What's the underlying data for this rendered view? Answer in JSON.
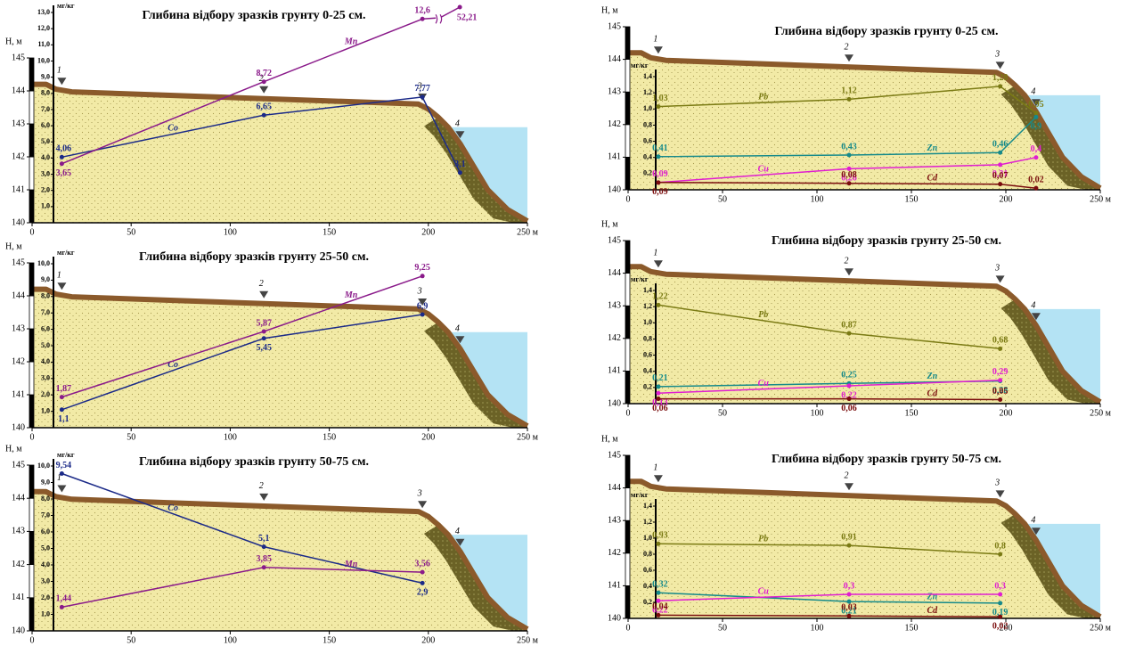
{
  "chart_data": [
    {
      "type": "line",
      "title": "Глибина відбору зразків грунту 0-25 см.",
      "ylabel": "Н, м",
      "y2label": "мг/кг",
      "xlim": [
        0,
        250
      ],
      "xticks": [
        0,
        50,
        100,
        150,
        200,
        {
          "value": 250,
          "label": "250 м"
        }
      ],
      "ylim": [
        140,
        145
      ],
      "yticks": [
        140,
        141,
        142,
        143,
        144,
        145
      ],
      "y2lim": [
        0,
        13
      ],
      "y2ticks": [
        {
          "value": 1,
          "label": "1,0"
        },
        {
          "value": 2,
          "label": "2,0"
        },
        {
          "value": 3,
          "label": "3,0"
        },
        {
          "value": 4,
          "label": "4,0"
        },
        {
          "value": 5,
          "label": "5,0"
        },
        {
          "value": 6,
          "label": "6,0"
        },
        {
          "value": 7,
          "label": "7,0"
        },
        {
          "value": 8,
          "label": "8,0"
        },
        {
          "value": 9,
          "label": "9,0"
        },
        {
          "value": 10,
          "label": "10,0"
        },
        {
          "value": 11,
          "label": "11,0"
        },
        {
          "value": 12,
          "label": "12,0"
        },
        {
          "value": 13,
          "label": "13,0"
        }
      ],
      "stations": {
        "labels": [
          "1",
          "2",
          "3",
          "4"
        ],
        "x": [
          15,
          117,
          197,
          216
        ]
      },
      "terrain": {
        "x": [
          0,
          7,
          12,
          20,
          195,
          200,
          205,
          210,
          216,
          222,
          230,
          240,
          250
        ],
        "h": [
          144.2,
          144.2,
          144.05,
          143.97,
          143.6,
          143.45,
          143.2,
          142.9,
          142.4,
          141.8,
          141.0,
          140.4,
          140.05
        ]
      },
      "water_level": 142.9,
      "series": [
        {
          "name": "Co",
          "color": "#1b2a88",
          "axis": "y2",
          "x": [
            15,
            117,
            197,
            216
          ],
          "values": [
            4.06,
            6.65,
            7.77,
            3.1
          ],
          "value_labels": [
            "4,06",
            "6,65",
            "7,77",
            "3,1"
          ]
        },
        {
          "name": "Mn",
          "color": "#8a1a8a",
          "axis": "y2",
          "x": [
            15,
            117,
            197
          ],
          "values": [
            3.65,
            8.72,
            12.6
          ],
          "value_labels": [
            "3,65",
            "8,72",
            "12,6"
          ]
        }
      ],
      "annotations": [
        {
          "text": "52,21"
        }
      ]
    },
    {
      "type": "line",
      "title": "Глибина відбору зразків грунту 25-50 см.",
      "ylabel": "Н, м",
      "y2label": "мг/кг",
      "xlim": [
        0,
        250
      ],
      "xticks": [
        0,
        50,
        100,
        150,
        200,
        {
          "value": 250,
          "label": "250 м"
        }
      ],
      "ylim": [
        140,
        145
      ],
      "yticks": [
        140,
        141,
        142,
        143,
        144,
        145
      ],
      "y2lim": [
        0,
        10
      ],
      "y2ticks": [
        {
          "value": 1,
          "label": "1,0"
        },
        {
          "value": 2,
          "label": "2,0"
        },
        {
          "value": 3,
          "label": "3,0"
        },
        {
          "value": 4,
          "label": "4,0"
        },
        {
          "value": 5,
          "label": "5,0"
        },
        {
          "value": 6,
          "label": "6,0"
        },
        {
          "value": 7,
          "label": "7,0"
        },
        {
          "value": 8,
          "label": "8,0"
        },
        {
          "value": 9,
          "label": "9,0"
        },
        {
          "value": 10,
          "label": "10,0"
        }
      ],
      "stations": {
        "labels": [
          "1",
          "2",
          "3",
          "4"
        ],
        "x": [
          15,
          117,
          197,
          216
        ]
      },
      "terrain": {
        "x": [
          0,
          7,
          12,
          20,
          195,
          200,
          205,
          210,
          216,
          222,
          230,
          240,
          250
        ],
        "h": [
          144.2,
          144.2,
          144.05,
          143.97,
          143.6,
          143.45,
          143.2,
          142.9,
          142.4,
          141.8,
          141.0,
          140.4,
          140.05
        ]
      },
      "water_level": 142.9,
      "series": [
        {
          "name": "Co",
          "color": "#1b2a88",
          "axis": "y2",
          "x": [
            15,
            117,
            197
          ],
          "values": [
            1.1,
            5.45,
            6.9
          ],
          "value_labels": [
            "1,1",
            "5,45",
            "6,9"
          ]
        },
        {
          "name": "Mn",
          "color": "#8a1a8a",
          "axis": "y2",
          "x": [
            15,
            117,
            197
          ],
          "values": [
            1.87,
            5.87,
            9.25
          ],
          "value_labels": [
            "1,87",
            "5,87",
            "9,25"
          ]
        }
      ]
    },
    {
      "type": "line",
      "title": "Глибина відбору зразків грунту 50-75 см.",
      "ylabel": "Н, м",
      "y2label": "мг/кг",
      "xlim": [
        0,
        250
      ],
      "xticks": [
        0,
        50,
        100,
        150,
        200,
        {
          "value": 250,
          "label": "250 м"
        }
      ],
      "ylim": [
        140,
        145
      ],
      "yticks": [
        140,
        141,
        142,
        143,
        144,
        145
      ],
      "y2lim": [
        0,
        10
      ],
      "y2ticks": [
        {
          "value": 1,
          "label": "1,0"
        },
        {
          "value": 2,
          "label": "2,0"
        },
        {
          "value": 3,
          "label": "3,0"
        },
        {
          "value": 4,
          "label": "4,0"
        },
        {
          "value": 5,
          "label": "5,0"
        },
        {
          "value": 6,
          "label": "6,0"
        },
        {
          "value": 7,
          "label": "7,0"
        },
        {
          "value": 8,
          "label": "8,0"
        },
        {
          "value": 9,
          "label": "9,0"
        },
        {
          "value": 10,
          "label": "10,0"
        }
      ],
      "stations": {
        "labels": [
          "1",
          "2",
          "3",
          "4"
        ],
        "x": [
          15,
          117,
          197,
          216
        ]
      },
      "terrain": {
        "x": [
          0,
          7,
          12,
          20,
          195,
          200,
          205,
          210,
          216,
          222,
          230,
          240,
          250
        ],
        "h": [
          144.2,
          144.2,
          144.05,
          143.97,
          143.6,
          143.45,
          143.2,
          142.9,
          142.4,
          141.8,
          141.0,
          140.4,
          140.05
        ]
      },
      "water_level": 142.9,
      "series": [
        {
          "name": "Co",
          "color": "#1b2a88",
          "axis": "y2",
          "x": [
            15,
            117,
            197
          ],
          "values": [
            9.54,
            5.1,
            2.9
          ],
          "value_labels": [
            "9,54",
            "5,1",
            "2,9"
          ]
        },
        {
          "name": "Mn",
          "color": "#8a1a8a",
          "axis": "y2",
          "x": [
            15,
            117,
            197
          ],
          "values": [
            1.44,
            3.85,
            3.56
          ],
          "value_labels": [
            "1,44",
            "3,85",
            "3,56"
          ]
        }
      ]
    },
    {
      "type": "line",
      "title": "Глибина відбору зразків грунту 0-25 см.",
      "ylabel": "Н, м",
      "y2label": "мг/кг",
      "xlim": [
        0,
        250
      ],
      "xticks": [
        0,
        50,
        100,
        150,
        200,
        {
          "value": 250,
          "label": "250 м"
        }
      ],
      "ylim": [
        140,
        145
      ],
      "yticks": [
        140,
        141,
        142,
        143,
        144,
        145
      ],
      "y2lim": [
        0,
        1.4
      ],
      "y2ticks": [
        {
          "value": 0.2,
          "label": "0,2"
        },
        {
          "value": 0.4,
          "label": "0,4"
        },
        {
          "value": 0.6,
          "label": "0,6"
        },
        {
          "value": 0.8,
          "label": "0,8"
        },
        {
          "value": 1.0,
          "label": "1,0"
        },
        {
          "value": 1.2,
          "label": "1,2"
        },
        {
          "value": 1.4,
          "label": "1,4"
        }
      ],
      "stations": {
        "labels": [
          "1",
          "2",
          "3",
          "4"
        ],
        "x": [
          16,
          117,
          197,
          216
        ]
      },
      "terrain": {
        "x": [
          0,
          7,
          12,
          20,
          195,
          200,
          205,
          210,
          216,
          222,
          230,
          240,
          250
        ],
        "h": [
          144.2,
          144.2,
          144.05,
          143.97,
          143.6,
          143.45,
          143.2,
          142.9,
          142.4,
          141.8,
          141.0,
          140.4,
          140.05
        ]
      },
      "water_level": 142.9,
      "series": [
        {
          "name": "Pb",
          "color": "#7b7b14",
          "axis": "y2",
          "x": [
            16,
            117,
            197,
            216
          ],
          "values": [
            1.03,
            1.12,
            1.28,
            0.95
          ],
          "value_labels": [
            "1,03",
            "1,12",
            "1,28",
            "0,95"
          ]
        },
        {
          "name": "Zn",
          "color": "#168a8a",
          "axis": "y2",
          "x": [
            16,
            117,
            197,
            216
          ],
          "values": [
            0.41,
            0.43,
            0.46,
            0.9
          ],
          "value_labels": [
            "0,41",
            "0,43",
            "0,46",
            "0,9"
          ]
        },
        {
          "name": "Cu",
          "color": "#e01ed0",
          "axis": "y2",
          "x": [
            16,
            117,
            197,
            216
          ],
          "values": [
            0.09,
            0.26,
            0.31,
            0.4
          ],
          "value_labels": [
            "0,09",
            "0,26",
            "0,31",
            "0,4"
          ]
        },
        {
          "name": "Cd",
          "color": "#7a0d0d",
          "axis": "y2",
          "x": [
            16,
            117,
            197,
            216
          ],
          "values": [
            0.09,
            0.08,
            0.07,
            0.02
          ],
          "value_labels": [
            "0,09",
            "0,08",
            "0,07",
            "0,02"
          ]
        }
      ]
    },
    {
      "type": "line",
      "title": "Глибина відбору зразків грунту 25-50 см.",
      "ylabel": "Н, м",
      "y2label": "мг/кг",
      "xlim": [
        0,
        250
      ],
      "xticks": [
        0,
        50,
        100,
        150,
        200,
        {
          "value": 250,
          "label": "250 м"
        }
      ],
      "ylim": [
        140,
        145
      ],
      "yticks": [
        140,
        141,
        142,
        143,
        144,
        145
      ],
      "y2lim": [
        0,
        1.4
      ],
      "y2ticks": [
        {
          "value": 0.2,
          "label": "0,2"
        },
        {
          "value": 0.4,
          "label": "0,4"
        },
        {
          "value": 0.6,
          "label": "0,6"
        },
        {
          "value": 0.8,
          "label": "0,8"
        },
        {
          "value": 1.0,
          "label": "1,0"
        },
        {
          "value": 1.2,
          "label": "1,2"
        },
        {
          "value": 1.4,
          "label": "1,4"
        }
      ],
      "stations": {
        "labels": [
          "1",
          "2",
          "3",
          "4"
        ],
        "x": [
          16,
          117,
          197,
          216
        ]
      },
      "terrain": {
        "x": [
          0,
          7,
          12,
          20,
          195,
          200,
          205,
          210,
          216,
          222,
          230,
          240,
          250
        ],
        "h": [
          144.2,
          144.2,
          144.05,
          143.97,
          143.6,
          143.45,
          143.2,
          142.9,
          142.4,
          141.8,
          141.0,
          140.4,
          140.05
        ]
      },
      "water_level": 142.9,
      "series": [
        {
          "name": "Pb",
          "color": "#7b7b14",
          "axis": "y2",
          "x": [
            16,
            117,
            197
          ],
          "values": [
            1.22,
            0.87,
            0.68
          ],
          "value_labels": [
            "1,22",
            "0,87",
            "0,68"
          ]
        },
        {
          "name": "Zn",
          "color": "#168a8a",
          "axis": "y2",
          "x": [
            16,
            117,
            197
          ],
          "values": [
            0.21,
            0.25,
            0.28
          ],
          "value_labels": [
            "0,21",
            "0,25",
            "0,28"
          ]
        },
        {
          "name": "Cu",
          "color": "#e01ed0",
          "axis": "y2",
          "x": [
            16,
            117,
            197
          ],
          "values": [
            0.13,
            0.22,
            0.29
          ],
          "value_labels": [
            "0,13",
            "0,22",
            "0,29"
          ]
        },
        {
          "name": "Cd",
          "color": "#7a0d0d",
          "axis": "y2",
          "x": [
            16,
            117,
            197
          ],
          "values": [
            0.06,
            0.06,
            0.05
          ],
          "value_labels": [
            "0,06",
            "0,06",
            "0,05"
          ]
        }
      ]
    },
    {
      "type": "line",
      "title": "Глибина відбору зразків грунту 50-75 см.",
      "ylabel": "Н, м",
      "y2label": "мг/кг",
      "xlim": [
        0,
        250
      ],
      "xticks": [
        0,
        50,
        100,
        150,
        200,
        {
          "value": 250,
          "label": "250 м"
        }
      ],
      "ylim": [
        140,
        145
      ],
      "yticks": [
        140,
        141,
        142,
        143,
        144,
        145
      ],
      "y2lim": [
        0,
        1.4
      ],
      "y2ticks": [
        {
          "value": 0.2,
          "label": "0,2"
        },
        {
          "value": 0.4,
          "label": "0,4"
        },
        {
          "value": 0.6,
          "label": "0,6"
        },
        {
          "value": 0.8,
          "label": "0,8"
        },
        {
          "value": 1.0,
          "label": "1,0"
        },
        {
          "value": 1.2,
          "label": "1,2"
        },
        {
          "value": 1.4,
          "label": "1,4"
        }
      ],
      "stations": {
        "labels": [
          "1",
          "2",
          "3",
          "4"
        ],
        "x": [
          16,
          117,
          197,
          216
        ]
      },
      "terrain": {
        "x": [
          0,
          7,
          12,
          20,
          195,
          200,
          205,
          210,
          216,
          222,
          230,
          240,
          250
        ],
        "h": [
          144.2,
          144.2,
          144.05,
          143.97,
          143.6,
          143.45,
          143.2,
          142.9,
          142.4,
          141.8,
          141.0,
          140.4,
          140.05
        ]
      },
      "water_level": 142.9,
      "series": [
        {
          "name": "Pb",
          "color": "#7b7b14",
          "axis": "y2",
          "x": [
            16,
            117,
            197
          ],
          "values": [
            0.93,
            0.91,
            0.8
          ],
          "value_labels": [
            "0,93",
            "0,91",
            "0,8"
          ]
        },
        {
          "name": "Zn",
          "color": "#168a8a",
          "axis": "y2",
          "x": [
            16,
            117,
            197
          ],
          "values": [
            0.32,
            0.21,
            0.19
          ],
          "value_labels": [
            "0,32",
            "0,21",
            "0,19"
          ]
        },
        {
          "name": "Cu",
          "color": "#e01ed0",
          "axis": "y2",
          "x": [
            16,
            117,
            197
          ],
          "values": [
            0.22,
            0.3,
            0.3
          ],
          "value_labels": [
            "0,22",
            "0,3",
            "0,3"
          ]
        },
        {
          "name": "Cd",
          "color": "#7a0d0d",
          "axis": "y2",
          "x": [
            16,
            117,
            197
          ],
          "values": [
            0.04,
            0.03,
            0.02
          ],
          "value_labels": [
            "0,04",
            "0,03",
            "0,02"
          ]
        }
      ]
    }
  ]
}
